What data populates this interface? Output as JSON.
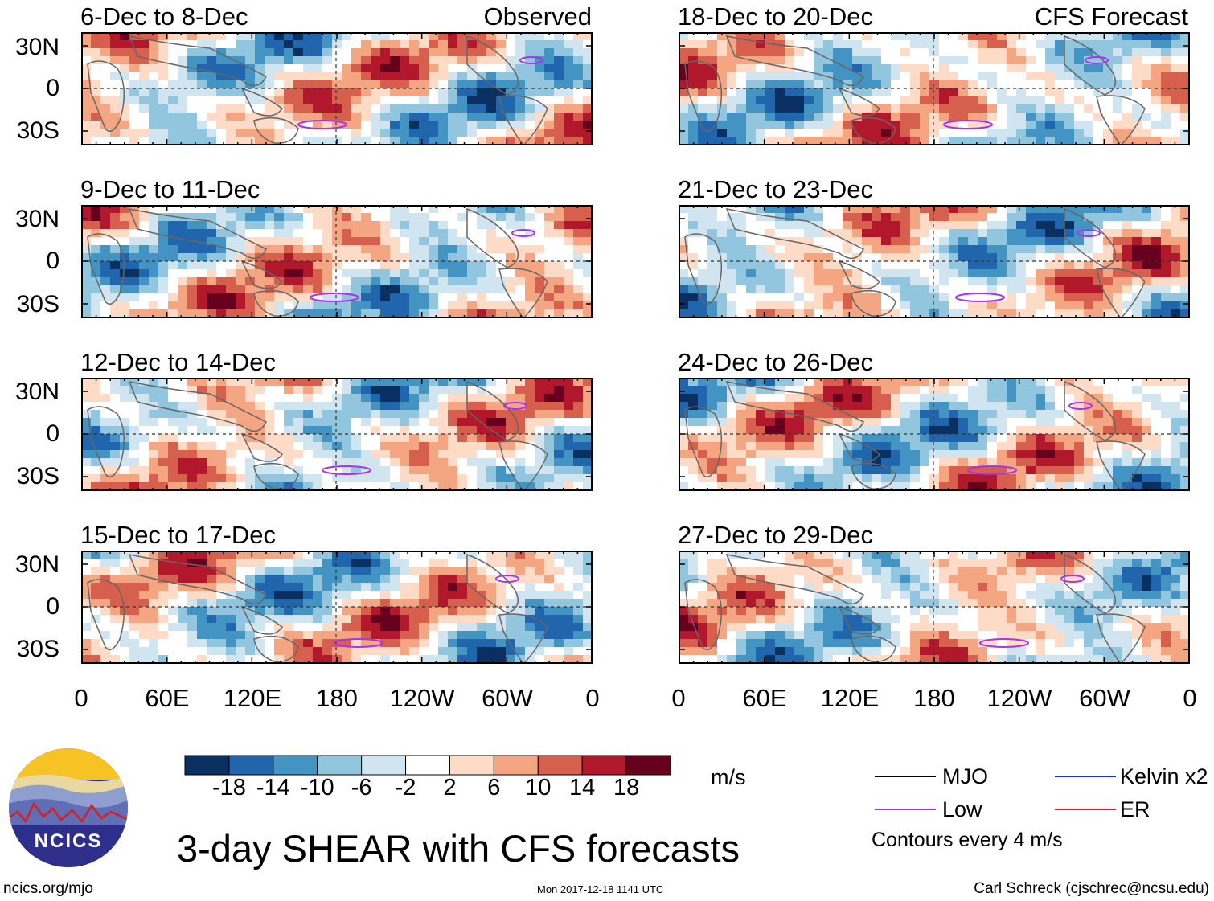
{
  "columns": {
    "left": {
      "tag": "Observed"
    },
    "right": {
      "tag": "CFS Forecast"
    }
  },
  "panels": [
    {
      "title": "6-Dec to 8-Dec"
    },
    {
      "title": "9-Dec to 11-Dec"
    },
    {
      "title": "12-Dec to 14-Dec"
    },
    {
      "title": "15-Dec to 17-Dec"
    },
    {
      "title": "18-Dec to 20-Dec"
    },
    {
      "title": "21-Dec to 23-Dec"
    },
    {
      "title": "24-Dec to 26-Dec"
    },
    {
      "title": "27-Dec to 29-Dec"
    }
  ],
  "lat_labels": [
    "30N",
    "0",
    "30S"
  ],
  "lon_labels": [
    "0",
    "60E",
    "120E",
    "180",
    "120W",
    "60W",
    "0"
  ],
  "colorbar": {
    "unit": "m/s",
    "colors": [
      "#0a3062",
      "#2166ac",
      "#4393c3",
      "#92c5de",
      "#d1e5f0",
      "#ffffff",
      "#fddbc7",
      "#f4a582",
      "#d6604d",
      "#b2182b",
      "#67001f"
    ],
    "ticks": [
      "-18",
      "-14",
      "-10",
      "-6",
      "-2",
      "2",
      "6",
      "10",
      "14",
      "18"
    ]
  },
  "legend": {
    "items": [
      {
        "label": "MJO",
        "color": "#000000"
      },
      {
        "label": "Kelvin x2",
        "color": "#1e2bd6"
      },
      {
        "label": "Low",
        "color": "#a833e8"
      },
      {
        "label": "ER",
        "color": "#d91e1e"
      }
    ],
    "note": "Contours every 4 m/s"
  },
  "main_title": "3-day SHEAR with CFS forecasts",
  "logo_text": "NCICS",
  "footer": {
    "url": "ncics.org/mjo",
    "timestamp": "Mon 2017-12-18 1141 UTC",
    "credit": "Carl Schreck (cjschrec@ncsu.edu)"
  }
}
